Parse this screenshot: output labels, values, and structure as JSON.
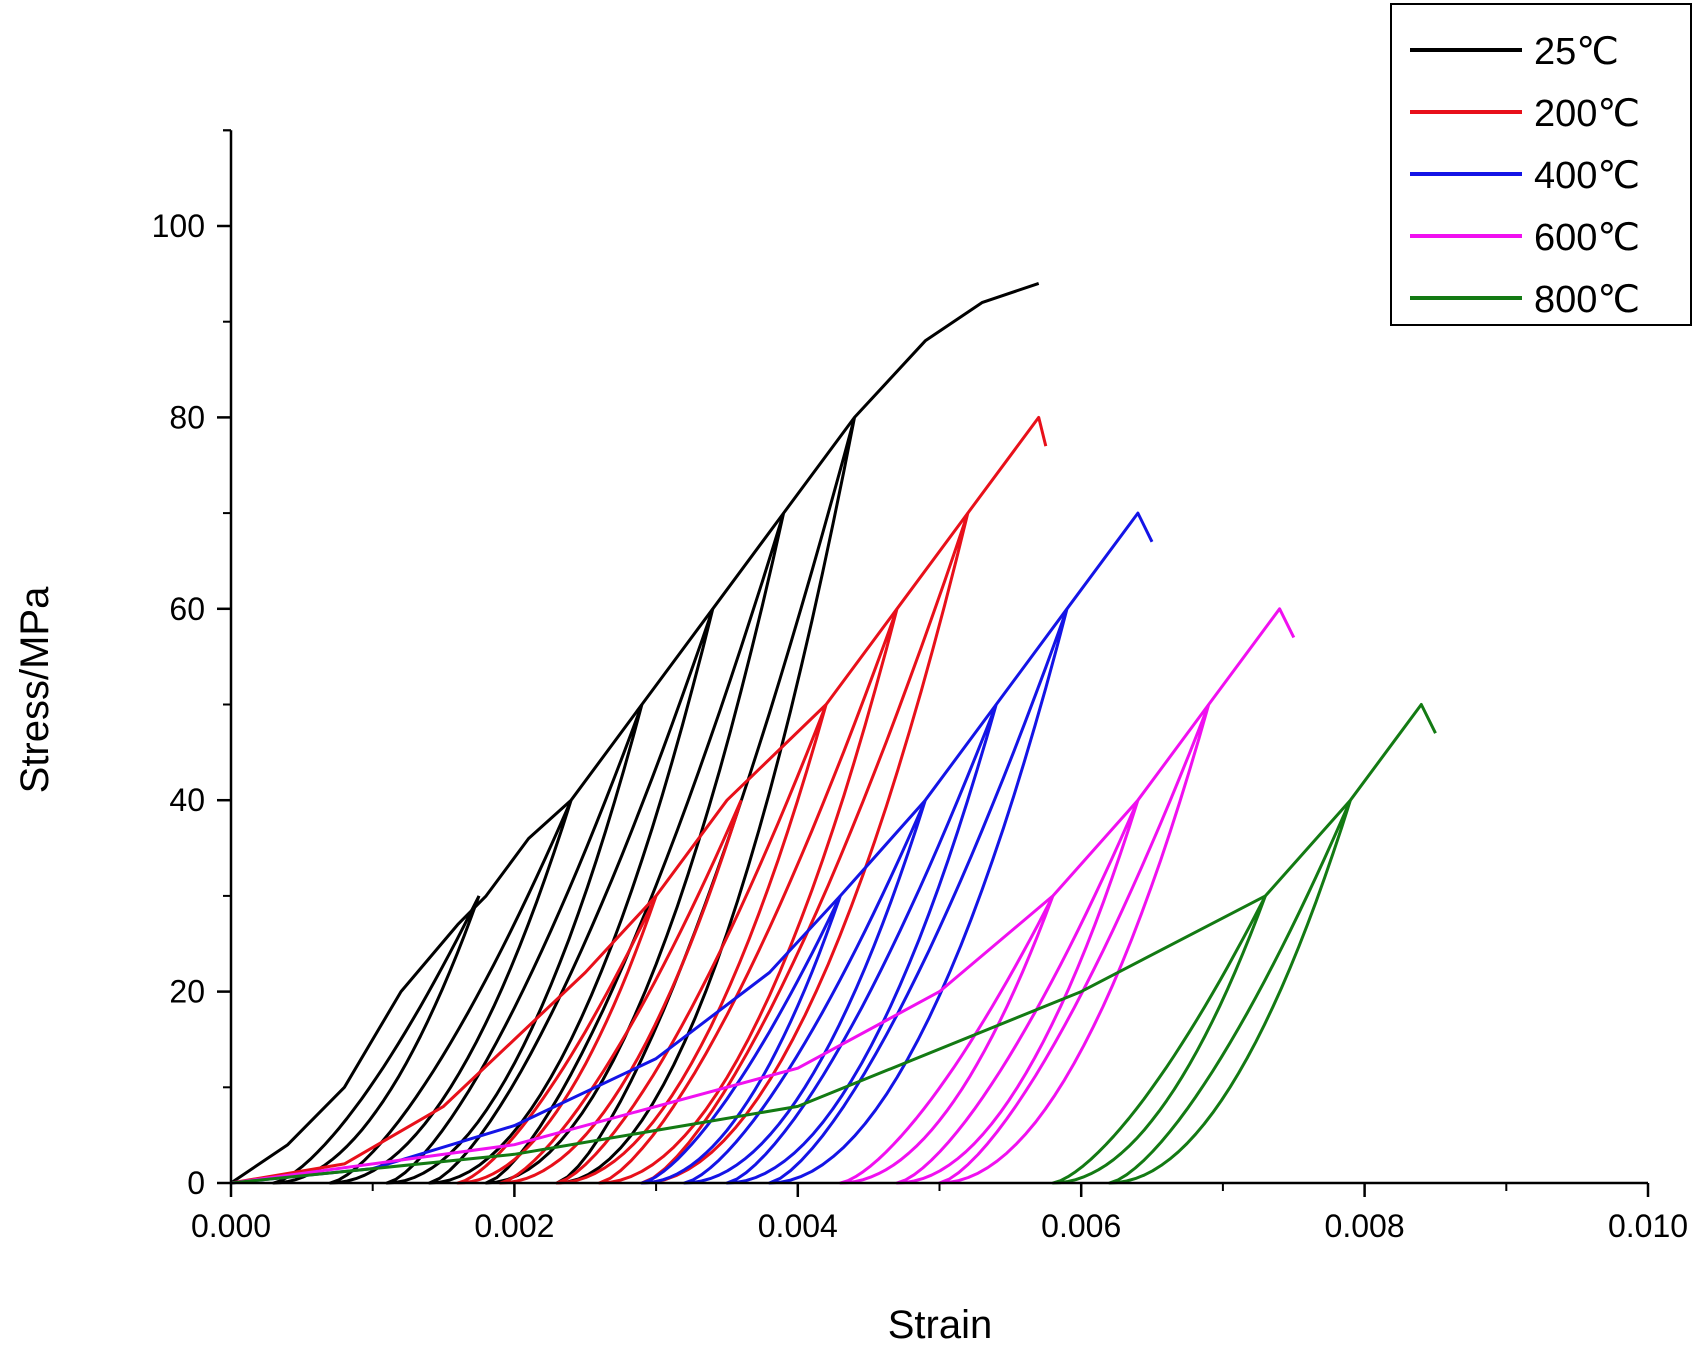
{
  "chart_data": {
    "type": "line",
    "title": "",
    "xlabel": "Strain",
    "ylabel": "Stress/MPa",
    "xlim": [
      0.0,
      0.01
    ],
    "ylim": [
      0,
      110
    ],
    "x_ticks": [
      "0.000",
      "0.002",
      "0.004",
      "0.006",
      "0.008",
      "0.010"
    ],
    "y_ticks": [
      "0",
      "20",
      "40",
      "60",
      "80",
      "100"
    ],
    "grid": false,
    "legend_position": "top-right",
    "series": [
      {
        "name": "25℃",
        "color": "#000000",
        "envelope": [
          [
            0.0,
            0
          ],
          [
            0.0004,
            4
          ],
          [
            0.0008,
            10
          ],
          [
            0.0012,
            20
          ],
          [
            0.0016,
            27
          ],
          [
            0.0018,
            30
          ],
          [
            0.0021,
            36
          ],
          [
            0.0024,
            40
          ],
          [
            0.0029,
            50
          ],
          [
            0.0034,
            60
          ],
          [
            0.0039,
            70
          ],
          [
            0.0044,
            80
          ],
          [
            0.0049,
            88
          ],
          [
            0.0053,
            92
          ],
          [
            0.0057,
            94
          ]
        ],
        "cycles": [
          {
            "peak": [
              0.00175,
              30
            ],
            "residual_strain": 0.0003
          },
          {
            "peak": [
              0.0024,
              40
            ],
            "residual_strain": 0.0007
          },
          {
            "peak": [
              0.0029,
              50
            ],
            "residual_strain": 0.0011
          },
          {
            "peak": [
              0.0034,
              60
            ],
            "residual_strain": 0.0014
          },
          {
            "peak": [
              0.0039,
              70
            ],
            "residual_strain": 0.0018
          },
          {
            "peak": [
              0.0044,
              80
            ],
            "residual_strain": 0.0023
          }
        ]
      },
      {
        "name": "200℃",
        "color": "#e8101a",
        "envelope": [
          [
            0.0,
            0
          ],
          [
            0.0008,
            2
          ],
          [
            0.0015,
            8
          ],
          [
            0.002,
            15
          ],
          [
            0.0025,
            22
          ],
          [
            0.003,
            30
          ],
          [
            0.0035,
            40
          ],
          [
            0.0042,
            50
          ],
          [
            0.0047,
            60
          ],
          [
            0.0052,
            70
          ],
          [
            0.0057,
            80
          ],
          [
            0.00575,
            77
          ]
        ],
        "cycles": [
          {
            "peak": [
              0.003,
              30
            ],
            "residual_strain": 0.0016
          },
          {
            "peak": [
              0.0036,
              40
            ],
            "residual_strain": 0.0019
          },
          {
            "peak": [
              0.0042,
              50
            ],
            "residual_strain": 0.0023
          },
          {
            "peak": [
              0.0047,
              60
            ],
            "residual_strain": 0.0026
          },
          {
            "peak": [
              0.0052,
              70
            ],
            "residual_strain": 0.0029
          }
        ]
      },
      {
        "name": "400℃",
        "color": "#1414e6",
        "envelope": [
          [
            0.0,
            0
          ],
          [
            0.001,
            1.5
          ],
          [
            0.002,
            6
          ],
          [
            0.003,
            13
          ],
          [
            0.0038,
            22
          ],
          [
            0.0043,
            30
          ],
          [
            0.0049,
            40
          ],
          [
            0.0054,
            50
          ],
          [
            0.0059,
            60
          ],
          [
            0.0064,
            70
          ],
          [
            0.0065,
            67
          ]
        ],
        "cycles": [
          {
            "peak": [
              0.0043,
              30
            ],
            "residual_strain": 0.0029
          },
          {
            "peak": [
              0.0049,
              40
            ],
            "residual_strain": 0.0032
          },
          {
            "peak": [
              0.0054,
              50
            ],
            "residual_strain": 0.0035
          },
          {
            "peak": [
              0.0059,
              60
            ],
            "residual_strain": 0.0038
          }
        ]
      },
      {
        "name": "600℃",
        "color": "#f010f0",
        "envelope": [
          [
            0.0,
            0
          ],
          [
            0.002,
            4
          ],
          [
            0.004,
            12
          ],
          [
            0.005,
            20
          ],
          [
            0.0058,
            30
          ],
          [
            0.0064,
            40
          ],
          [
            0.0069,
            50
          ],
          [
            0.0074,
            60
          ],
          [
            0.0075,
            57
          ]
        ],
        "cycles": [
          {
            "peak": [
              0.0058,
              30
            ],
            "residual_strain": 0.0043
          },
          {
            "peak": [
              0.0064,
              40
            ],
            "residual_strain": 0.0047
          },
          {
            "peak": [
              0.0069,
              50
            ],
            "residual_strain": 0.005
          }
        ]
      },
      {
        "name": "800℃",
        "color": "#137a13",
        "envelope": [
          [
            0.0,
            0
          ],
          [
            0.002,
            3
          ],
          [
            0.004,
            8
          ],
          [
            0.006,
            20
          ],
          [
            0.0073,
            30
          ],
          [
            0.0079,
            40
          ],
          [
            0.0084,
            50
          ],
          [
            0.0085,
            47
          ]
        ],
        "cycles": [
          {
            "peak": [
              0.0073,
              30
            ],
            "residual_strain": 0.0058
          },
          {
            "peak": [
              0.0079,
              40
            ],
            "residual_strain": 0.0062
          }
        ]
      }
    ]
  }
}
